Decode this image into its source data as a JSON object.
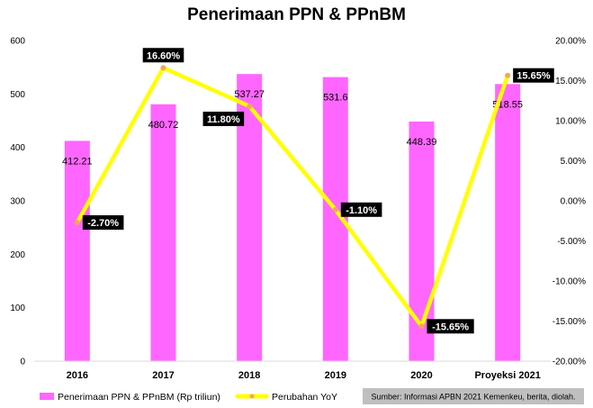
{
  "chart_data": {
    "type": "bar",
    "title": "Penerimaan PPN & PPnBM",
    "categories": [
      "2016",
      "2017",
      "2018",
      "2019",
      "2020",
      "Proyeksi 2021"
    ],
    "series": [
      {
        "name": "Penerimaan PPN & PPnBM (Rp triliun)",
        "type": "bar",
        "axis": "left",
        "color": "#ff66ff",
        "values": [
          412.21,
          480.72,
          537.27,
          531.6,
          448.39,
          518.55
        ],
        "labels": [
          "412.21",
          "480.72",
          "537.27",
          "531.6",
          "448.39",
          "518.55"
        ]
      },
      {
        "name": "Perubahan YoY",
        "type": "line",
        "axis": "right",
        "color": "#ffff00",
        "marker_color": "#f4a460",
        "values": [
          -2.7,
          16.6,
          11.8,
          -1.1,
          -15.65,
          15.65
        ],
        "labels": [
          "-2.70%",
          "16.60%",
          "11.80%",
          "-1.10%",
          "-15.65%",
          "15.65%"
        ]
      }
    ],
    "y_left": {
      "range": [
        0,
        600
      ],
      "ticks": [
        "600",
        "500",
        "400",
        "300",
        "200",
        "100",
        "0"
      ]
    },
    "y_right": {
      "range": [
        -20,
        20
      ],
      "ticks": [
        "20.00%",
        "15.00%",
        "10.00%",
        "5.00%",
        "0.00%",
        "-5.00%",
        "-10.00%",
        "-15.00%",
        "-20.00%"
      ]
    },
    "grid": false,
    "legend_position": "bottom-left",
    "source": "Sumber: Informasi APBN 2021 Kemenkeu, berita, diolah."
  }
}
